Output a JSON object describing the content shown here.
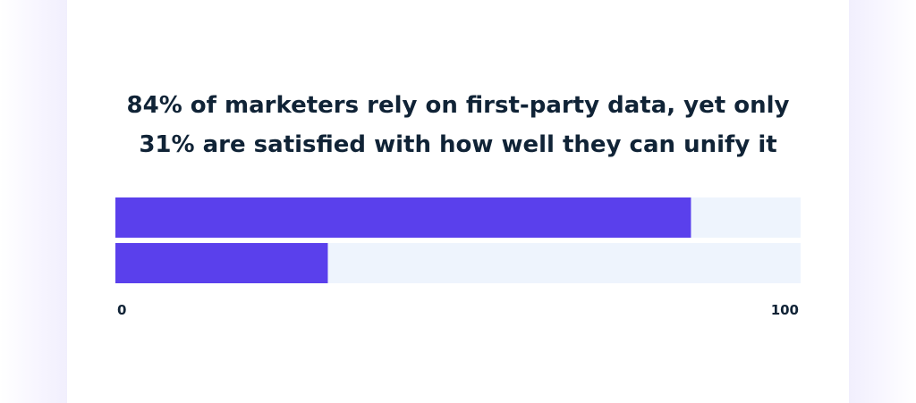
{
  "colors": {
    "bar_fill": "#5a40ec",
    "track": "#eef4fd",
    "text": "#102336"
  },
  "chart_data": {
    "type": "bar",
    "orientation": "horizontal",
    "title_lines": [
      "84% of marketers rely on first-party data, yet only",
      "31% are satisfied with how well they can unify it"
    ],
    "categories": [
      "",
      ""
    ],
    "values": [
      84,
      31
    ],
    "xlim": [
      0,
      100
    ],
    "tick_labels": [
      "0",
      "100"
    ],
    "grid": false,
    "legend": "none"
  }
}
